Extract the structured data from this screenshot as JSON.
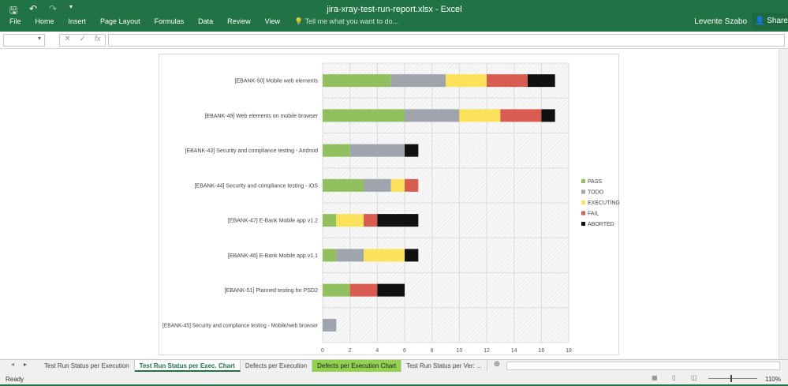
{
  "window": {
    "title": "jira-xray-test-run-report.xlsx - Excel",
    "user": "Levente Szabo",
    "share": "Share"
  },
  "ribbon": {
    "tabs": [
      "File",
      "Home",
      "Insert",
      "Page Layout",
      "Formulas",
      "Data",
      "Review",
      "View"
    ],
    "tell_me": "Tell me what you want to do..."
  },
  "formula_bar": {
    "fx": "fx",
    "cancel": "✕",
    "enter": "✓"
  },
  "sheet_tabs": [
    {
      "label": "Test Run Status per Execution",
      "active": false
    },
    {
      "label": "Test Run Status per Exec. Chart",
      "active": true
    },
    {
      "label": "Defects per Execution",
      "active": false
    },
    {
      "label": "Defects per Execution Chart",
      "active": false,
      "color": "#92d050"
    },
    {
      "label": "Test Run Status per Ver: ...",
      "active": false
    }
  ],
  "status": {
    "ready": "Ready",
    "zoom": "110%"
  },
  "chart_data": {
    "type": "bar",
    "orientation": "horizontal",
    "stacked": true,
    "categories": [
      "[EBANK-50] Mobile web elements",
      "[EBANK-49] Web elements on mobile browser",
      "[EBANK-43] Security and compliance testing - Android",
      "[EBANK-44] Security and compliance testing - iOS",
      "[EBANK-47] E-Bank Mobile app v1.2",
      "[EBANK-46] E-Bank Mobile app v1.1",
      "[EBANK-51] Planned testing for PSD2",
      "[EBANK-45] Security and compliance testing - Mobile/web browser"
    ],
    "series": [
      {
        "name": "PASS",
        "color": "#92c05e",
        "values": [
          5,
          6,
          2,
          3,
          1,
          1,
          2,
          0
        ]
      },
      {
        "name": "TODO",
        "color": "#a0a4ac",
        "values": [
          4,
          4,
          4,
          2,
          0,
          2,
          0,
          1
        ]
      },
      {
        "name": "EXECUTING",
        "color": "#fbe25a",
        "values": [
          3,
          3,
          0,
          1,
          2,
          3,
          0,
          0
        ]
      },
      {
        "name": "FAIL",
        "color": "#d85c50",
        "values": [
          3,
          3,
          0,
          1,
          1,
          0,
          2,
          0
        ]
      },
      {
        "name": "ABORTED",
        "color": "#111111",
        "values": [
          2,
          1,
          1,
          0,
          3,
          1,
          2,
          0
        ]
      }
    ],
    "xlim": [
      0,
      18
    ],
    "xticks": [
      "0",
      "2",
      "4",
      "6",
      "8",
      "10",
      "12",
      "14",
      "16",
      "18"
    ],
    "grid": true,
    "legend": "right"
  }
}
